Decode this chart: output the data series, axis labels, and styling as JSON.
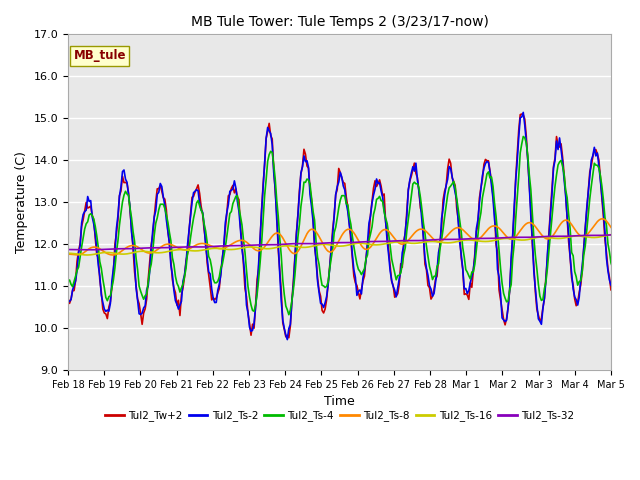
{
  "title": "MB Tule Tower: Tule Temps 2 (3/23/17-now)",
  "xlabel": "Time",
  "ylabel": "Temperature (C)",
  "ylim": [
    9.0,
    17.0
  ],
  "yticks": [
    9.0,
    10.0,
    11.0,
    12.0,
    13.0,
    14.0,
    15.0,
    16.0,
    17.0
  ],
  "xtick_labels": [
    "Feb 18",
    "Feb 19",
    "Feb 20",
    "Feb 21",
    "Feb 22",
    "Feb 23",
    "Feb 24",
    "Feb 25",
    "Feb 26",
    "Feb 27",
    "Feb 28",
    "Mar 1",
    "Mar 2",
    "Mar 3",
    "Mar 4",
    "Mar 5"
  ],
  "bg_color": "#e8e8e8",
  "grid_color": "#ffffff",
  "series_colors": [
    "#cc0000",
    "#0000ee",
    "#00bb00",
    "#ff8800",
    "#cccc00",
    "#8800bb"
  ],
  "series_names": [
    "Tul2_Tw+2",
    "Tul2_Ts-2",
    "Tul2_Ts-4",
    "Tul2_Ts-8",
    "Tul2_Ts-16",
    "Tul2_Ts-32"
  ],
  "legend_label": "MB_tule",
  "n_days": 16,
  "pts_per_day": 24
}
